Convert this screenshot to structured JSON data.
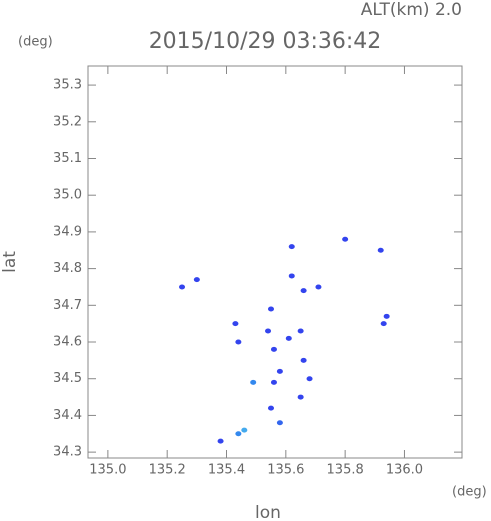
{
  "chart_data": {
    "type": "scatter",
    "alt_label": "ALT(km) 2.0",
    "title": "2015/10/29 03:36:42",
    "y_unit": "(deg)",
    "x_unit": "(deg)",
    "ylabel": "lat",
    "xlabel": "lon",
    "xlim": [
      134.933,
      136.194
    ],
    "ylim": [
      34.284,
      35.352
    ],
    "xticks": [
      {
        "value": 135.0,
        "label": "135.0"
      },
      135.2,
      135.4,
      135.6,
      135.8,
      {
        "value": 136.0,
        "label": "136.0"
      }
    ],
    "yticks": [
      34.3,
      34.4,
      34.5,
      34.6,
      34.7,
      34.8,
      34.9,
      {
        "value": 35.0,
        "label": "35.0"
      },
      35.1,
      35.2,
      35.3
    ],
    "x": [
      135.25,
      135.3,
      135.43,
      135.44,
      135.49,
      135.55,
      135.54,
      135.56,
      135.58,
      135.56,
      135.61,
      135.65,
      135.66,
      135.68,
      135.65,
      135.55,
      135.58,
      135.46,
      135.44,
      135.38,
      135.62,
      135.62,
      135.8,
      135.92,
      135.94,
      135.93,
      135.66,
      135.71
    ],
    "values": [
      34.75,
      34.77,
      34.65,
      34.6,
      34.49,
      34.69,
      34.63,
      34.58,
      34.52,
      34.49,
      34.61,
      34.63,
      34.55,
      34.5,
      34.45,
      34.42,
      34.38,
      34.36,
      34.35,
      34.33,
      34.78,
      34.86,
      34.88,
      34.85,
      34.67,
      34.65,
      34.74,
      34.75
    ],
    "colors": [
      "#3344ee",
      "#3344ee",
      "#3344ee",
      "#3344ee",
      "#3388ee",
      "#3344ee",
      "#3344ee",
      "#3344ee",
      "#3344ee",
      "#3344ee",
      "#3344ee",
      "#3344ee",
      "#3344ee",
      "#3344ee",
      "#3344ee",
      "#3344ee",
      "#3366ee",
      "#44aaee",
      "#3388ee",
      "#3344ee",
      "#3344ee",
      "#3344ee",
      "#3344ee",
      "#3344ee",
      "#3344ee",
      "#3344ee",
      "#3344ee",
      "#3344ee"
    ]
  }
}
